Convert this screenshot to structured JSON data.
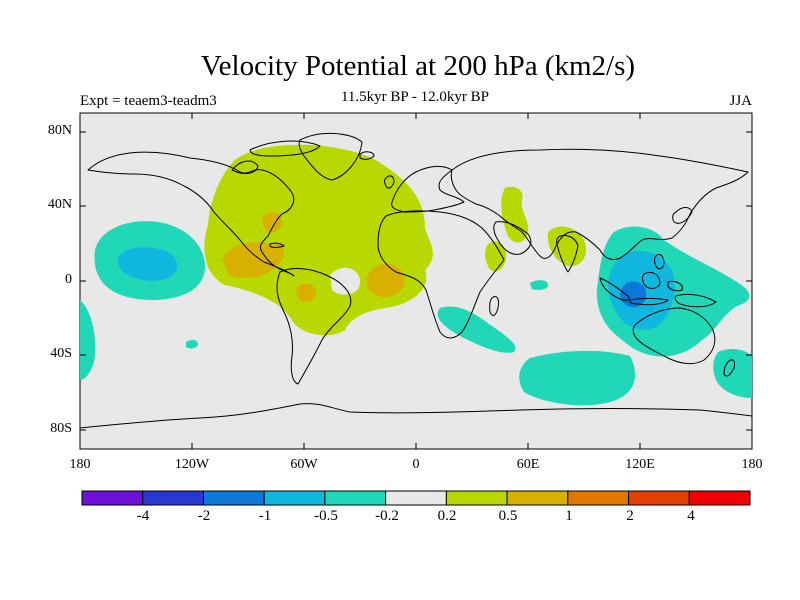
{
  "title": "Velocity Potential at 200 hPa (km2/s)",
  "experiment": "Expt = teaem3-teadm3",
  "period": "11.5kyr BP - 12.0kyr BP",
  "season": "JJA",
  "latitude_labels": [
    "80N",
    "40N",
    "0",
    "40S",
    "80S"
  ],
  "longitude_labels": [
    "180",
    "120W",
    "60W",
    "0",
    "60E",
    "120E",
    "180"
  ],
  "colorbar": {
    "labels": [
      "-4",
      "-2",
      "-1",
      "-0.5",
      "-0.2",
      "0.2",
      "0.5",
      "1",
      "2",
      "4"
    ],
    "colors": [
      "#7010d8",
      "#2838d0",
      "#0a78d8",
      "#10b8e0",
      "#20d8b8",
      "#e8e8e8",
      "#b8d800",
      "#d8b000",
      "#e07800",
      "#e04000",
      "#f00000"
    ]
  },
  "colors": {
    "ocean_background": "#e8e8e8",
    "coastline": "#000000"
  }
}
